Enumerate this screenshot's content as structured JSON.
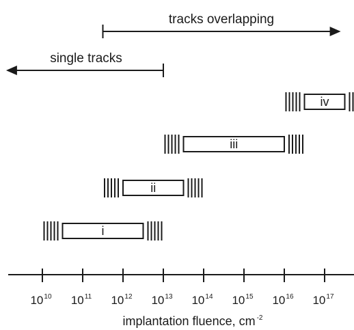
{
  "arrows": {
    "overlapping": {
      "label": "tracks overlapping",
      "from_exp": 11.5,
      "to_exp": 17.4,
      "direction": "right"
    },
    "single": {
      "label": "single tracks",
      "from_exp": 13,
      "to_exp": 9.1,
      "direction": "left"
    }
  },
  "axis": {
    "title": "implantation fluence, cm",
    "title_exp": "-2",
    "ticks": [
      {
        "base": "10",
        "exp": "10",
        "value": 10
      },
      {
        "base": "10",
        "exp": "11",
        "value": 11
      },
      {
        "base": "10",
        "exp": "12",
        "value": 12
      },
      {
        "base": "10",
        "exp": "13",
        "value": 13
      },
      {
        "base": "10",
        "exp": "14",
        "value": 14
      },
      {
        "base": "10",
        "exp": "15",
        "value": 15
      },
      {
        "base": "10",
        "exp": "16",
        "value": 16
      },
      {
        "base": "10",
        "exp": "17",
        "value": 17
      }
    ]
  },
  "ranges": [
    {
      "label": "i",
      "from_exp": 10.5,
      "to_exp": 12.5
    },
    {
      "label": "ii",
      "from_exp": 12.0,
      "to_exp": 13.5
    },
    {
      "label": "iii",
      "from_exp": 13.5,
      "to_exp": 16.0
    },
    {
      "label": "iv",
      "from_exp": 16.5,
      "to_exp": 17.5
    }
  ],
  "colors": {
    "ink": "#1a1a1a",
    "background": "#ffffff"
  }
}
